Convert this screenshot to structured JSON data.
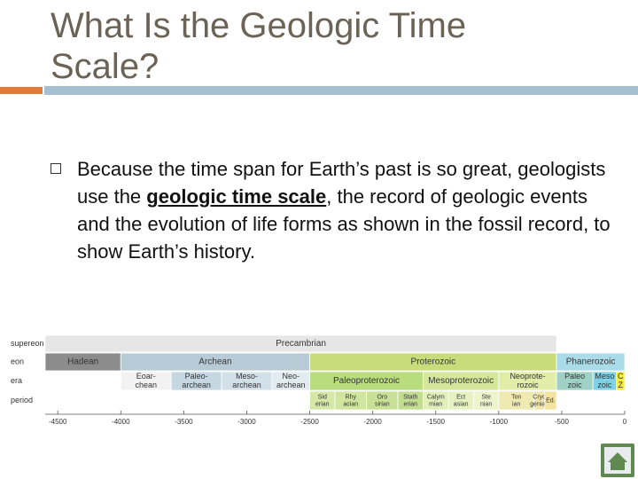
{
  "slide": {
    "title_lines": [
      "What Is the Geologic Time",
      "Scale?"
    ],
    "bullet": {
      "before": "Because the time span for Earth’s past is so great, geologists use the ",
      "term": "geologic time scale",
      "after": ", the record of geologic events and the evolution of life forms as shown in the fossil record, to show Earth’s history."
    },
    "timeline": {
      "row_labels": [
        "supereon",
        "eon",
        "era",
        "period"
      ],
      "xlim": [
        -4600,
        0
      ],
      "xticks": [
        -4500,
        -4000,
        -3500,
        -3000,
        -2500,
        -2000,
        -1500,
        -1000,
        -500,
        0
      ],
      "rows": [
        [
          {
            "lines": [
              "Precambrian"
            ],
            "start": -4600,
            "end": -541,
            "color": "#e6e6e6"
          }
        ],
        [
          {
            "lines": [
              "Hadean"
            ],
            "start": -4600,
            "end": -4000,
            "color": "#8c8c8c"
          },
          {
            "lines": [
              "Archean"
            ],
            "start": -4000,
            "end": -2500,
            "color": "#b7cbd6"
          },
          {
            "lines": [
              "Proterozoic"
            ],
            "start": -2500,
            "end": -541,
            "color": "#c9dc7a"
          },
          {
            "lines": [
              "Phanerozoic"
            ],
            "start": -541,
            "end": 0,
            "color": "#a9dbe9"
          }
        ],
        [
          {
            "lines": [
              "Eoar-",
              "chean"
            ],
            "start": -4000,
            "end": -3600,
            "color": "#f2f2f2"
          },
          {
            "lines": [
              "Paleo-",
              "archean"
            ],
            "start": -3600,
            "end": -3200,
            "color": "#c5d8e2"
          },
          {
            "lines": [
              "Meso-",
              "archean"
            ],
            "start": -3200,
            "end": -2800,
            "color": "#d2e1e8"
          },
          {
            "lines": [
              "Neo-",
              "archean"
            ],
            "start": -2800,
            "end": -2500,
            "color": "#e2ecf0"
          },
          {
            "lines": [
              "Paleoproterozoic"
            ],
            "start": -2500,
            "end": -1600,
            "color": "#b9dc7e"
          },
          {
            "lines": [
              "Mesoproterozoic"
            ],
            "start": -1600,
            "end": -1000,
            "color": "#d5e79a"
          },
          {
            "lines": [
              "Neoprote-",
              "rozoic"
            ],
            "start": -1000,
            "end": -541,
            "color": "#e2eda8"
          },
          {
            "lines": [
              "Paleo",
              "zoic"
            ],
            "start": -541,
            "end": -252,
            "color": "#9fd2c4"
          },
          {
            "lines": [
              "Meso",
              "zoic"
            ],
            "start": -252,
            "end": -66,
            "color": "#7fd2e6"
          },
          {
            "lines": [
              "C",
              "Z"
            ],
            "start": -66,
            "end": 0,
            "color": "#f7ec3a"
          }
        ],
        [
          {
            "lines": [
              "Sid",
              "erian"
            ],
            "start": -2500,
            "end": -2300,
            "color": "#d6e8a6"
          },
          {
            "lines": [
              "Rhy",
              "acian"
            ],
            "start": -2300,
            "end": -2050,
            "color": "#d0e59e"
          },
          {
            "lines": [
              "Oro",
              "sirian"
            ],
            "start": -2050,
            "end": -1800,
            "color": "#c9e196"
          },
          {
            "lines": [
              "Stath",
              "erian"
            ],
            "start": -1800,
            "end": -1600,
            "color": "#c2dd8f"
          },
          {
            "lines": [
              "Calym",
              "mian"
            ],
            "start": -1600,
            "end": -1400,
            "color": "#e3eeb9"
          },
          {
            "lines": [
              "Ect",
              "asian"
            ],
            "start": -1400,
            "end": -1200,
            "color": "#e8f1c2"
          },
          {
            "lines": [
              "Ste",
              "nian"
            ],
            "start": -1200,
            "end": -1000,
            "color": "#edf3cb"
          },
          {
            "lines": [
              "Ton",
              "ian"
            ],
            "start": -1000,
            "end": -720,
            "color": "#efe9b2"
          },
          {
            "lines": [
              "Cryo",
              "genian"
            ],
            "start": -720,
            "end": -635,
            "color": "#f1e6a9"
          },
          {
            "lines": [
              "Ed."
            ],
            "start": -635,
            "end": -541,
            "color": "#f2e39f"
          }
        ]
      ]
    }
  }
}
